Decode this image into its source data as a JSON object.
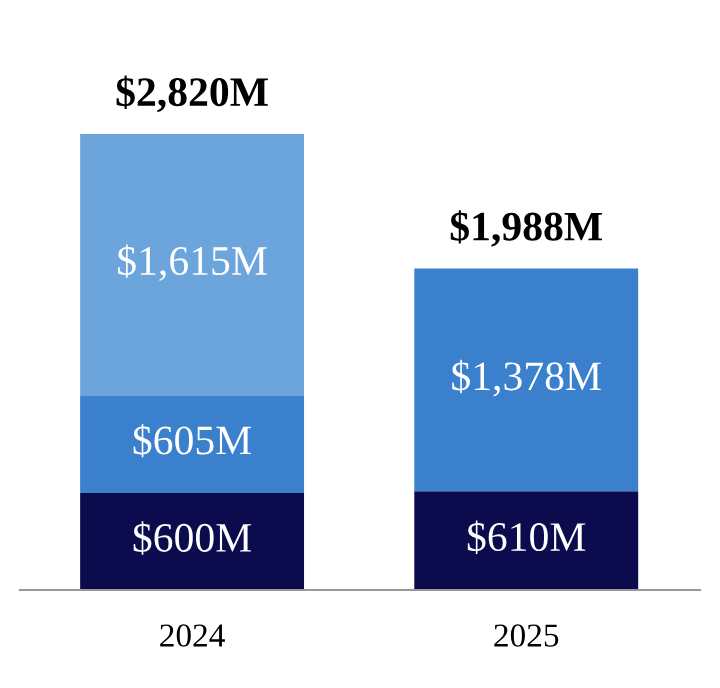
{
  "chart_data": {
    "type": "bar",
    "stacked": true,
    "categories": [
      "2024",
      "2025"
    ],
    "series": [
      {
        "color": "#0b0b4e",
        "values": [
          600,
          610
        ],
        "value_labels": [
          "$600M",
          "$610M"
        ]
      },
      {
        "color": "#3a80cc",
        "values": [
          605,
          1378
        ],
        "value_labels": [
          "$605M",
          "$1,378M"
        ]
      },
      {
        "color": "#6ca4dc",
        "values": [
          1615,
          null
        ],
        "value_labels": [
          "$1,615M",
          null
        ]
      }
    ],
    "totals": [
      "$2,820M",
      "$1,988M"
    ],
    "tick_labels": "x",
    "grid": false,
    "legend": false
  }
}
